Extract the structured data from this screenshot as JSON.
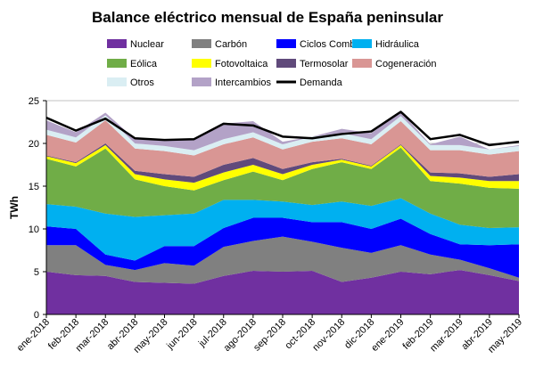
{
  "chart_data": {
    "type": "area",
    "title": "Balance eléctrico mensual de España peninsular",
    "ylabel": "TWh",
    "xlabel": "",
    "ylim": [
      0,
      25
    ],
    "yticks": [
      0,
      5,
      10,
      15,
      20,
      25
    ],
    "grid": true,
    "legend_position": "top",
    "categories": [
      "ene-2018",
      "feb-2018",
      "mar-2018",
      "abr-2018",
      "may-2018",
      "jun-2018",
      "jul-2018",
      "ago-2018",
      "sep-2018",
      "oct-2018",
      "nov-2018",
      "dic-2018",
      "ene-2019",
      "feb-2019",
      "mar-2019",
      "abr-2019",
      "may-2019"
    ],
    "stacked_series": [
      {
        "name": "Nuclear",
        "color": "#7030a0",
        "values": [
          5.0,
          4.6,
          4.5,
          3.8,
          3.7,
          3.6,
          4.5,
          5.1,
          5.0,
          5.1,
          3.8,
          4.3,
          5.0,
          4.7,
          5.2,
          4.6,
          3.9
        ]
      },
      {
        "name": "Carbón",
        "color": "#808080",
        "values": [
          3.1,
          3.5,
          1.3,
          1.4,
          2.3,
          2.1,
          3.4,
          3.5,
          4.1,
          3.4,
          4.0,
          2.9,
          3.1,
          2.3,
          1.2,
          0.8,
          0.4
        ]
      },
      {
        "name": "Ciclos Comb.",
        "color": "#0000ff",
        "values": [
          2.2,
          1.9,
          1.2,
          1.1,
          2.0,
          2.3,
          2.2,
          2.7,
          2.2,
          2.3,
          3.0,
          2.8,
          3.1,
          2.4,
          1.8,
          2.7,
          3.9
        ]
      },
      {
        "name": "Hidráulica",
        "color": "#00b0f0",
        "values": [
          2.6,
          2.6,
          4.8,
          5.1,
          3.6,
          3.8,
          3.3,
          2.1,
          1.9,
          2.0,
          2.4,
          2.7,
          2.4,
          2.4,
          2.3,
          2.0,
          2.0
        ]
      },
      {
        "name": "Eólica",
        "color": "#70ad47",
        "values": [
          5.3,
          4.7,
          7.6,
          4.4,
          3.4,
          2.7,
          2.3,
          3.3,
          2.5,
          4.2,
          4.6,
          4.3,
          5.9,
          3.8,
          4.8,
          4.7,
          4.5
        ]
      },
      {
        "name": "Fotovoltaica",
        "color": "#ffff00",
        "values": [
          0.3,
          0.4,
          0.4,
          0.6,
          0.8,
          0.9,
          0.9,
          0.8,
          0.7,
          0.5,
          0.3,
          0.3,
          0.3,
          0.6,
          0.7,
          0.8,
          0.9
        ]
      },
      {
        "name": "Termosolar",
        "color": "#604a7b",
        "values": [
          0.1,
          0.1,
          0.2,
          0.4,
          0.6,
          0.7,
          0.9,
          0.8,
          0.6,
          0.3,
          0.1,
          0.1,
          0.1,
          0.4,
          0.5,
          0.5,
          0.8
        ]
      },
      {
        "name": "Cogeneración",
        "color": "#d99694",
        "values": [
          2.4,
          2.3,
          2.7,
          2.6,
          2.7,
          2.5,
          2.4,
          2.4,
          2.3,
          2.4,
          2.4,
          2.5,
          2.7,
          2.6,
          2.7,
          2.6,
          2.7
        ]
      },
      {
        "name": "Otros",
        "color": "#daeef3",
        "values": [
          0.6,
          0.6,
          0.6,
          0.6,
          0.6,
          0.6,
          0.6,
          0.6,
          0.6,
          0.6,
          0.6,
          0.6,
          0.6,
          0.6,
          0.6,
          0.6,
          0.6
        ]
      },
      {
        "name": "Intercambios",
        "color": "#b3a2c7",
        "values": [
          1.1,
          0.6,
          0.3,
          0.5,
          0.6,
          1.3,
          1.8,
          1.3,
          0.3,
          0.0,
          0.5,
          0.7,
          0.5,
          0.1,
          1.0,
          0.0,
          0.1
        ]
      }
    ],
    "line_series": [
      {
        "name": "Demanda",
        "color": "#000000",
        "values": [
          23.0,
          21.5,
          22.9,
          20.6,
          20.4,
          20.5,
          22.3,
          22.1,
          20.8,
          20.6,
          21.1,
          21.4,
          23.7,
          20.5,
          21.0,
          19.8,
          20.2
        ]
      }
    ],
    "legend_order": [
      "Nuclear",
      "Carbón",
      "Ciclos Comb.",
      "Hidráulica",
      "Eólica",
      "Fotovoltaica",
      "Termosolar",
      "Cogeneración",
      "Otros",
      "Intercambios",
      "Demanda"
    ]
  }
}
